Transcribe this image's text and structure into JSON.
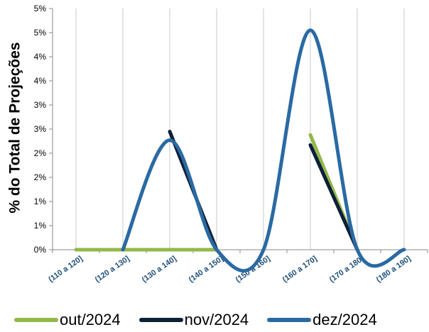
{
  "chart_data": {
    "type": "line",
    "smooth": true,
    "ylabel": "% do Total de Projeções",
    "categories": [
      "(110 a 120]",
      "(120 a 130]",
      "(130 a 140]",
      "(140 a 150]",
      "(150 a 160]",
      "(160 a 170]",
      "(170 a 180]",
      "(180 a 190]"
    ],
    "y_tick_values": [
      0,
      0.5,
      1,
      1.5,
      2,
      2.5,
      3,
      3.5,
      4,
      4.5,
      5
    ],
    "y_tick_labels": [
      "0%",
      "1%",
      "1%",
      "2%",
      "2%",
      "3%",
      "3%",
      "4%",
      "4%",
      "5%",
      "5%"
    ],
    "ylim": [
      0,
      5
    ],
    "grid": "vertical",
    "legend_position": "bottom",
    "series": [
      {
        "name": "out/2024",
        "color": "#93b84a",
        "values": [
          0,
          0,
          0,
          0,
          null,
          2.38,
          0,
          null
        ]
      },
      {
        "name": "nov/2024",
        "color": "#0e1f38",
        "values": [
          0,
          null,
          2.45,
          0,
          null,
          2.17,
          0,
          null
        ]
      },
      {
        "name": "dez/2024",
        "color": "#2a6aa3",
        "values": [
          null,
          0,
          2.27,
          0,
          0,
          4.55,
          0,
          0
        ]
      }
    ]
  }
}
